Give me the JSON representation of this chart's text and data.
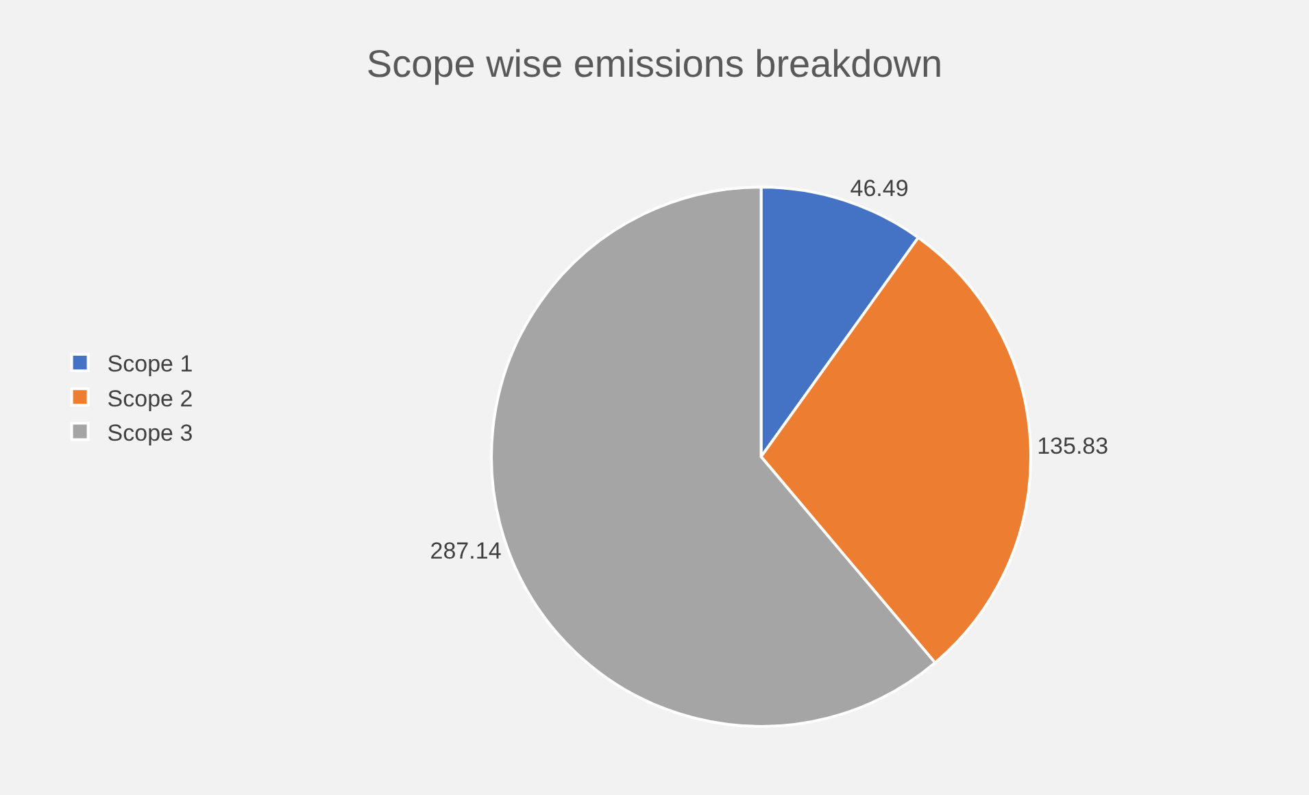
{
  "chart_data": {
    "type": "pie",
    "title": "Scope wise emissions breakdown",
    "categories": [
      "Scope 1",
      "Scope 2",
      "Scope 3"
    ],
    "values": [
      46.49,
      135.83,
      287.14
    ],
    "colors": [
      "#4472c4",
      "#ed7d31",
      "#a5a5a5"
    ],
    "data_labels": true,
    "legend": "left"
  }
}
